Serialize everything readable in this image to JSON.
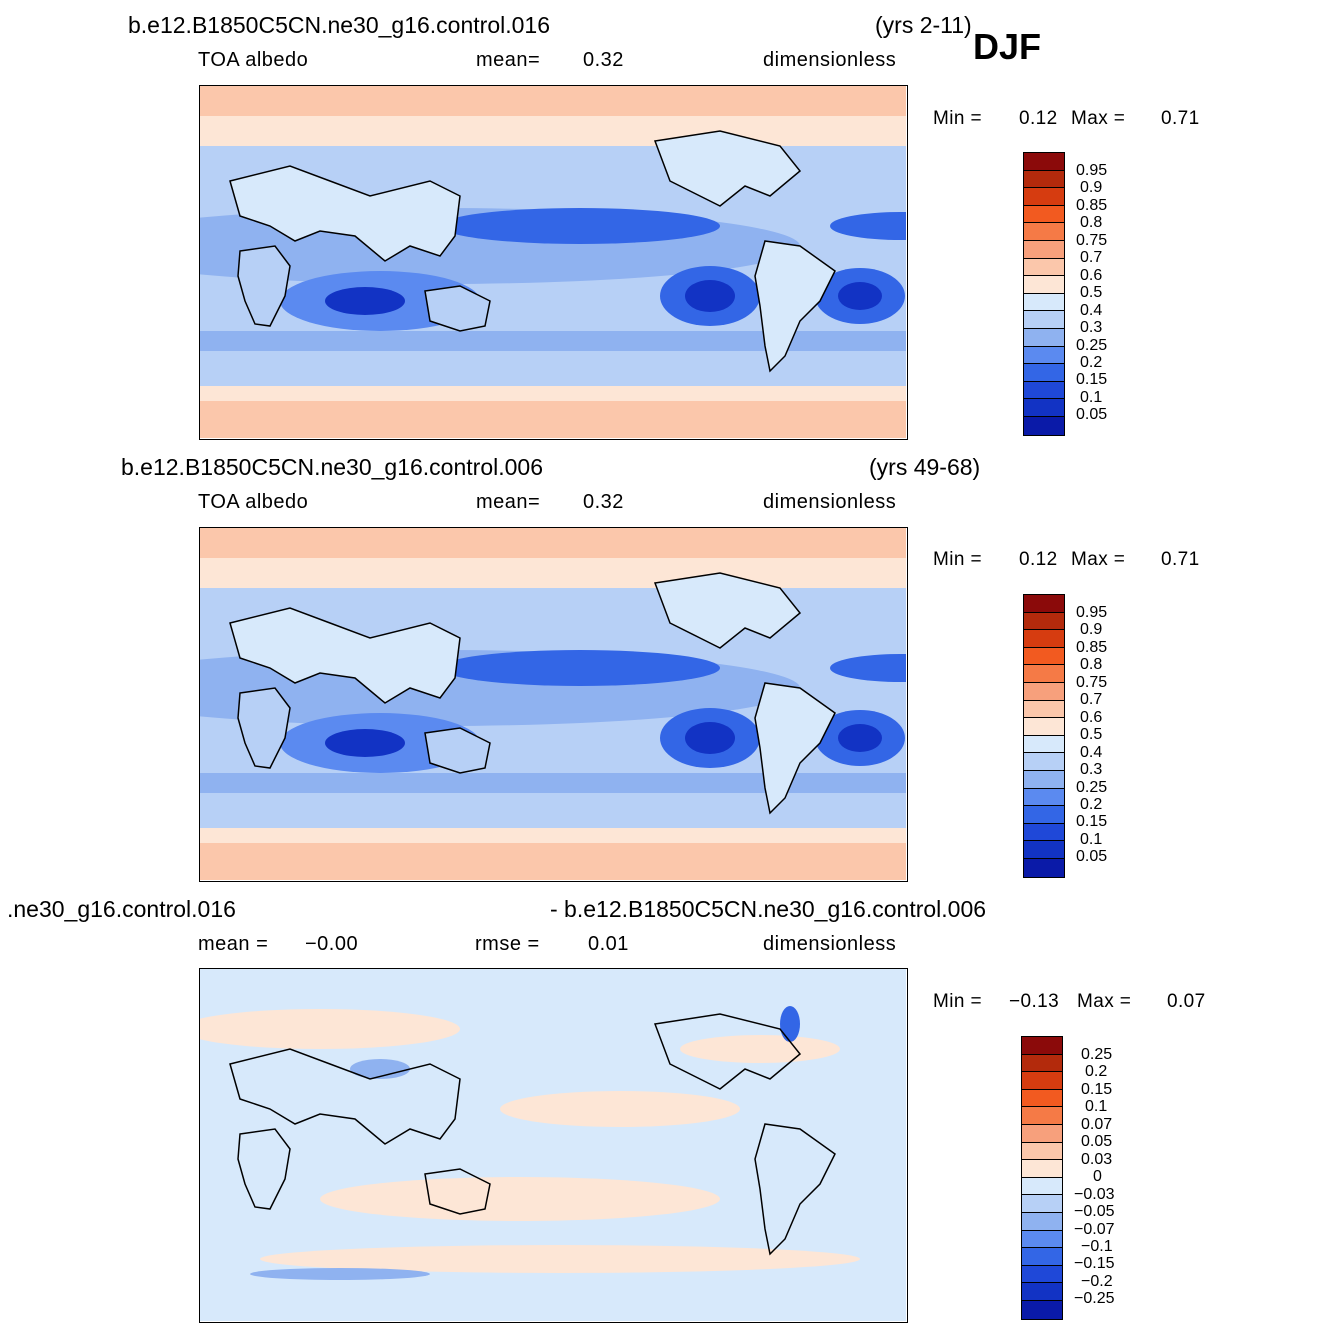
{
  "season": "DJF",
  "panels": [
    {
      "case": "b.e12.B1850C5CN.ne30_g16.control.016",
      "years": "(yrs 2-11)",
      "variable": "TOA  albedo",
      "stat1_label": "mean=",
      "stat1_value": "0.32",
      "stat2_label": "",
      "stat2_value": "",
      "units": "dimensionless",
      "min_label": "Min  =",
      "min_value": "0.12",
      "max_label": "Max  =",
      "max_value": "0.71",
      "colorbar_labels": [
        "0.95",
        "0.9",
        "0.85",
        "0.8",
        "0.75",
        "0.7",
        "0.6",
        "0.5",
        "0.4",
        "0.3",
        "0.25",
        "0.2",
        "0.15",
        "0.1",
        "0.05"
      ]
    },
    {
      "case": "b.e12.B1850C5CN.ne30_g16.control.006",
      "years": "(yrs 49-68)",
      "variable": "TOA  albedo",
      "stat1_label": "mean=",
      "stat1_value": "0.32",
      "stat2_label": "",
      "stat2_value": "",
      "units": "dimensionless",
      "min_label": "Min  =",
      "min_value": "0.12",
      "max_label": "Max  =",
      "max_value": "0.71",
      "colorbar_labels": [
        "0.95",
        "0.9",
        "0.85",
        "0.8",
        "0.75",
        "0.7",
        "0.6",
        "0.5",
        "0.4",
        "0.3",
        "0.25",
        "0.2",
        "0.15",
        "0.1",
        "0.05"
      ]
    },
    {
      "case": ".ne30_g16.control.016",
      "years": "- b.e12.B1850C5CN.ne30_g16.control.006",
      "variable": "mean  =",
      "stat1_label": "",
      "stat1_value": "−0.00",
      "stat2_label": "rmse  =",
      "stat2_value": "0.01",
      "units": "dimensionless",
      "min_label": "Min  =",
      "min_value": "−0.13",
      "max_label": "Max  =",
      "max_value": "0.07",
      "colorbar_labels": [
        "0.25",
        "0.2",
        "0.15",
        "0.1",
        "0.07",
        "0.05",
        "0.03",
        "0",
        "−0.03",
        "−0.05",
        "−0.07",
        "−0.1",
        "−0.15",
        "−0.2",
        "−0.25"
      ]
    }
  ],
  "colors": {
    "scale": [
      "#8b0a0a",
      "#b32a0c",
      "#d63c10",
      "#f25a20",
      "#f57a46",
      "#f7a07c",
      "#fbc7ab",
      "#fde6d6",
      "#d7e9fb",
      "#b7d0f6",
      "#8fb2f0",
      "#5b8af0",
      "#3366e6",
      "#1f48d8",
      "#1233c4",
      "#0a1aa8",
      "#050d86"
    ],
    "ocean_low": "#1f48d8",
    "ocean_mid": "#5b8af0",
    "ocean_light": "#b7d0f6",
    "land": "#d7e9fb",
    "polar": "#fbc7ab",
    "diff_bg": "#d7e9fb",
    "diff_pos": "#fde6d6"
  }
}
